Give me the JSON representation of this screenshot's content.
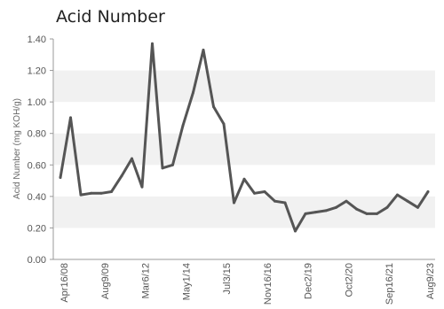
{
  "chart_data": {
    "type": "line",
    "title": "Acid Number",
    "ylabel": "Acid Number (mg KOH/g)",
    "xlabel": "",
    "ylim": [
      0,
      1.4
    ],
    "yticks": [
      "0.00",
      "0.20",
      "0.40",
      "0.60",
      "0.80",
      "1.00",
      "1.20",
      "1.40"
    ],
    "grid": "alternating horizontal bands",
    "legend": "none",
    "line_color": "#555555",
    "band_color": "#f1f1f1",
    "x_tick_labels": [
      "Apr16/08",
      "Aug9/09",
      "Mar6/12",
      "May1/14",
      "Jul3/15",
      "Nov16/16",
      "Dec2/19",
      "Oct2/20",
      "Sep16/21",
      "Aug9/23"
    ],
    "series": [
      {
        "values": [
          0.52,
          0.9,
          0.41,
          0.42,
          0.42,
          0.43,
          0.53,
          0.64,
          0.46,
          1.37,
          0.58,
          0.6,
          0.85,
          1.06,
          1.33,
          0.97,
          0.86,
          0.36,
          0.51,
          0.42,
          0.43,
          0.37,
          0.36,
          0.18,
          0.29,
          0.3,
          0.31,
          0.33,
          0.37,
          0.32,
          0.29,
          0.29,
          0.33,
          0.41,
          0.37,
          0.33,
          0.43
        ]
      }
    ]
  }
}
